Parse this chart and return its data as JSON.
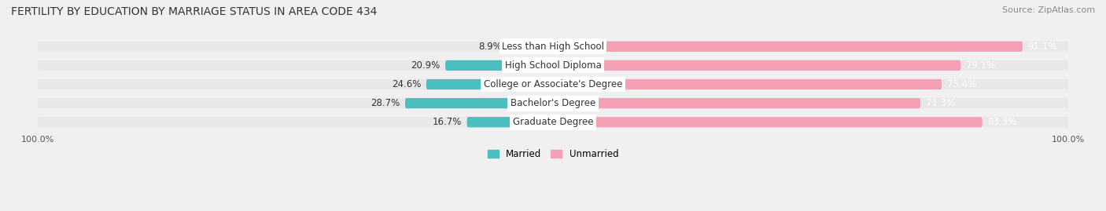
{
  "title": "FERTILITY BY EDUCATION BY MARRIAGE STATUS IN AREA CODE 434",
  "source": "Source: ZipAtlas.com",
  "categories": [
    "Less than High School",
    "High School Diploma",
    "College or Associate's Degree",
    "Bachelor's Degree",
    "Graduate Degree"
  ],
  "married_pct": [
    8.9,
    20.9,
    24.6,
    28.7,
    16.7
  ],
  "unmarried_pct": [
    91.1,
    79.1,
    75.4,
    71.3,
    83.3
  ],
  "married_color": "#4BBFBF",
  "unmarried_color": "#F4A0B5",
  "bar_height": 0.55,
  "bg_color": "#F0F0F0",
  "bar_bg_color": "#E8E8E8",
  "label_color_married": "#333333",
  "label_color_unmarried": "#FFFFFF",
  "title_fontsize": 10,
  "source_fontsize": 8,
  "label_fontsize": 8.5,
  "pct_fontsize": 8.5
}
